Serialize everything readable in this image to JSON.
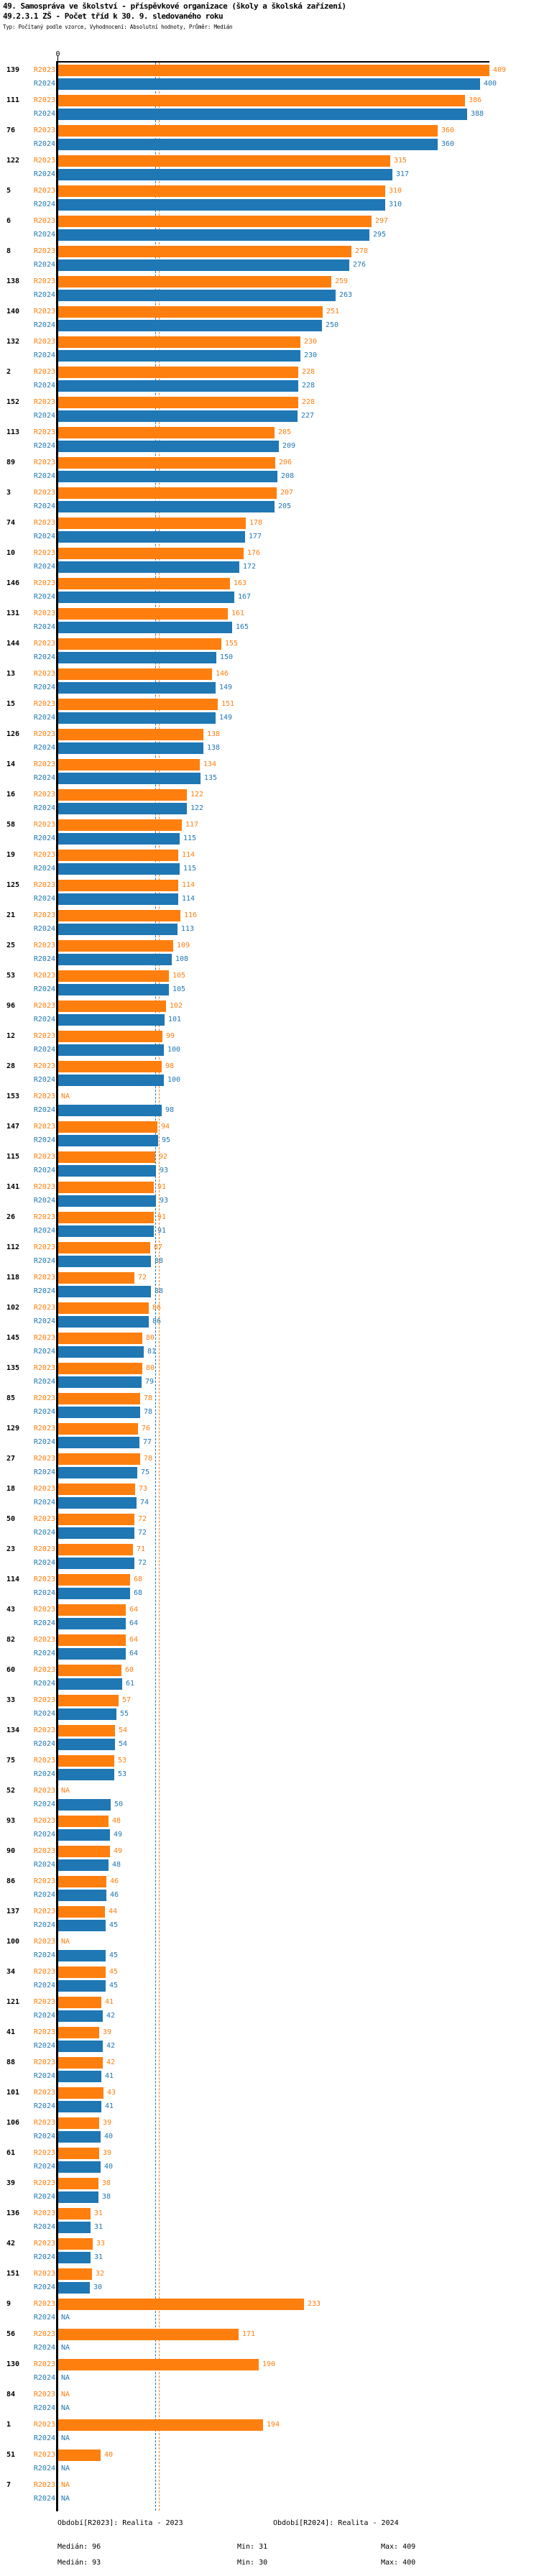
{
  "header": {
    "title1": "49. Samospráva ve školství - příspěvkové organizace (školy a školská zařízení)",
    "title2": "49.2.3.1 ZŠ - Počet tříd k 30. 9. sledovaného roku",
    "subtitle": "Typ: Počítaný podle vzorce, Vyhodnocení: Absolutní hodnoty, Průměr: Medián"
  },
  "chart_data": {
    "type": "bar",
    "orientation": "horizontal",
    "value_axis": {
      "zero_label": "0",
      "max": 409
    },
    "na_label": "NA",
    "series": [
      {
        "key": "r2023",
        "label": "R2023",
        "color": "#FF7F0E",
        "median": 96
      },
      {
        "key": "r2024",
        "label": "R2024",
        "color": "#1F77B4",
        "median": 93
      }
    ],
    "rows": [
      {
        "id": "139",
        "r2023": 409,
        "r2024": 400
      },
      {
        "id": "111",
        "r2023": 386,
        "r2024": 388
      },
      {
        "id": "76",
        "r2023": 360,
        "r2024": 360
      },
      {
        "id": "122",
        "r2023": 315,
        "r2024": 317
      },
      {
        "id": "5",
        "r2023": 310,
        "r2024": 310
      },
      {
        "id": "6",
        "r2023": 297,
        "r2024": 295
      },
      {
        "id": "8",
        "r2023": 278,
        "r2024": 276
      },
      {
        "id": "138",
        "r2023": 259,
        "r2024": 263
      },
      {
        "id": "140",
        "r2023": 251,
        "r2024": 250
      },
      {
        "id": "132",
        "r2023": 230,
        "r2024": 230
      },
      {
        "id": "2",
        "r2023": 228,
        "r2024": 228
      },
      {
        "id": "152",
        "r2023": 228,
        "r2024": 227
      },
      {
        "id": "113",
        "r2023": 205,
        "r2024": 209
      },
      {
        "id": "89",
        "r2023": 206,
        "r2024": 208
      },
      {
        "id": "3",
        "r2023": 207,
        "r2024": 205
      },
      {
        "id": "74",
        "r2023": 178,
        "r2024": 177
      },
      {
        "id": "10",
        "r2023": 176,
        "r2024": 172
      },
      {
        "id": "146",
        "r2023": 163,
        "r2024": 167
      },
      {
        "id": "131",
        "r2023": 161,
        "r2024": 165
      },
      {
        "id": "144",
        "r2023": 155,
        "r2024": 150
      },
      {
        "id": "13",
        "r2023": 146,
        "r2024": 149
      },
      {
        "id": "15",
        "r2023": 151,
        "r2024": 149
      },
      {
        "id": "126",
        "r2023": 138,
        "r2024": 138
      },
      {
        "id": "14",
        "r2023": 134,
        "r2024": 135
      },
      {
        "id": "16",
        "r2023": 122,
        "r2024": 122
      },
      {
        "id": "58",
        "r2023": 117,
        "r2024": 115
      },
      {
        "id": "19",
        "r2023": 114,
        "r2024": 115
      },
      {
        "id": "125",
        "r2023": 114,
        "r2024": 114
      },
      {
        "id": "21",
        "r2023": 116,
        "r2024": 113
      },
      {
        "id": "25",
        "r2023": 109,
        "r2024": 108
      },
      {
        "id": "53",
        "r2023": 105,
        "r2024": 105
      },
      {
        "id": "96",
        "r2023": 102,
        "r2024": 101
      },
      {
        "id": "12",
        "r2023": 99,
        "r2024": 100
      },
      {
        "id": "28",
        "r2023": 98,
        "r2024": 100
      },
      {
        "id": "153",
        "r2023": null,
        "r2024": 98
      },
      {
        "id": "147",
        "r2023": 94,
        "r2024": 95
      },
      {
        "id": "115",
        "r2023": 92,
        "r2024": 93
      },
      {
        "id": "141",
        "r2023": 91,
        "r2024": 93
      },
      {
        "id": "26",
        "r2023": 91,
        "r2024": 91
      },
      {
        "id": "112",
        "r2023": 87,
        "r2024": 88
      },
      {
        "id": "118",
        "r2023": 72,
        "r2024": 88
      },
      {
        "id": "102",
        "r2023": 86,
        "r2024": 86
      },
      {
        "id": "145",
        "r2023": 80,
        "r2024": 81
      },
      {
        "id": "135",
        "r2023": 80,
        "r2024": 79
      },
      {
        "id": "85",
        "r2023": 78,
        "r2024": 78
      },
      {
        "id": "129",
        "r2023": 76,
        "r2024": 77
      },
      {
        "id": "27",
        "r2023": 78,
        "r2024": 75
      },
      {
        "id": "18",
        "r2023": 73,
        "r2024": 74
      },
      {
        "id": "50",
        "r2023": 72,
        "r2024": 72
      },
      {
        "id": "23",
        "r2023": 71,
        "r2024": 72
      },
      {
        "id": "114",
        "r2023": 68,
        "r2024": 68
      },
      {
        "id": "43",
        "r2023": 64,
        "r2024": 64
      },
      {
        "id": "82",
        "r2023": 64,
        "r2024": 64
      },
      {
        "id": "60",
        "r2023": 60,
        "r2024": 61
      },
      {
        "id": "33",
        "r2023": 57,
        "r2024": 55
      },
      {
        "id": "134",
        "r2023": 54,
        "r2024": 54
      },
      {
        "id": "75",
        "r2023": 53,
        "r2024": 53
      },
      {
        "id": "52",
        "r2023": null,
        "r2024": 50
      },
      {
        "id": "93",
        "r2023": 48,
        "r2024": 49
      },
      {
        "id": "90",
        "r2023": 49,
        "r2024": 48
      },
      {
        "id": "86",
        "r2023": 46,
        "r2024": 46
      },
      {
        "id": "137",
        "r2023": 44,
        "r2024": 45
      },
      {
        "id": "100",
        "r2023": null,
        "r2024": 45
      },
      {
        "id": "34",
        "r2023": 45,
        "r2024": 45
      },
      {
        "id": "121",
        "r2023": 41,
        "r2024": 42
      },
      {
        "id": "41",
        "r2023": 39,
        "r2024": 42
      },
      {
        "id": "88",
        "r2023": 42,
        "r2024": 41
      },
      {
        "id": "101",
        "r2023": 43,
        "r2024": 41
      },
      {
        "id": "106",
        "r2023": 39,
        "r2024": 40
      },
      {
        "id": "61",
        "r2023": 39,
        "r2024": 40
      },
      {
        "id": "39",
        "r2023": 38,
        "r2024": 38
      },
      {
        "id": "136",
        "r2023": 31,
        "r2024": 31
      },
      {
        "id": "42",
        "r2023": 33,
        "r2024": 31
      },
      {
        "id": "151",
        "r2023": 32,
        "r2024": 30
      },
      {
        "id": "9",
        "r2023": 233,
        "r2024": null
      },
      {
        "id": "56",
        "r2023": 171,
        "r2024": null
      },
      {
        "id": "130",
        "r2023": 190,
        "r2024": null
      },
      {
        "id": "84",
        "r2023": null,
        "r2024": null
      },
      {
        "id": "1",
        "r2023": 194,
        "r2024": null
      },
      {
        "id": "51",
        "r2023": 40,
        "r2024": null
      },
      {
        "id": "7",
        "r2023": null,
        "r2024": null
      }
    ]
  },
  "footer": {
    "legend_r2023": "Období[R2023]: Realita - 2023",
    "legend_r2024": "Období[R2024]: Realita - 2024",
    "stats_r2023": {
      "median": "Medián: 96",
      "min": "Min: 31",
      "max": "Max: 409"
    },
    "stats_r2024": {
      "median": "Medián: 93",
      "min": "Min: 30",
      "max": "Max: 400"
    }
  }
}
